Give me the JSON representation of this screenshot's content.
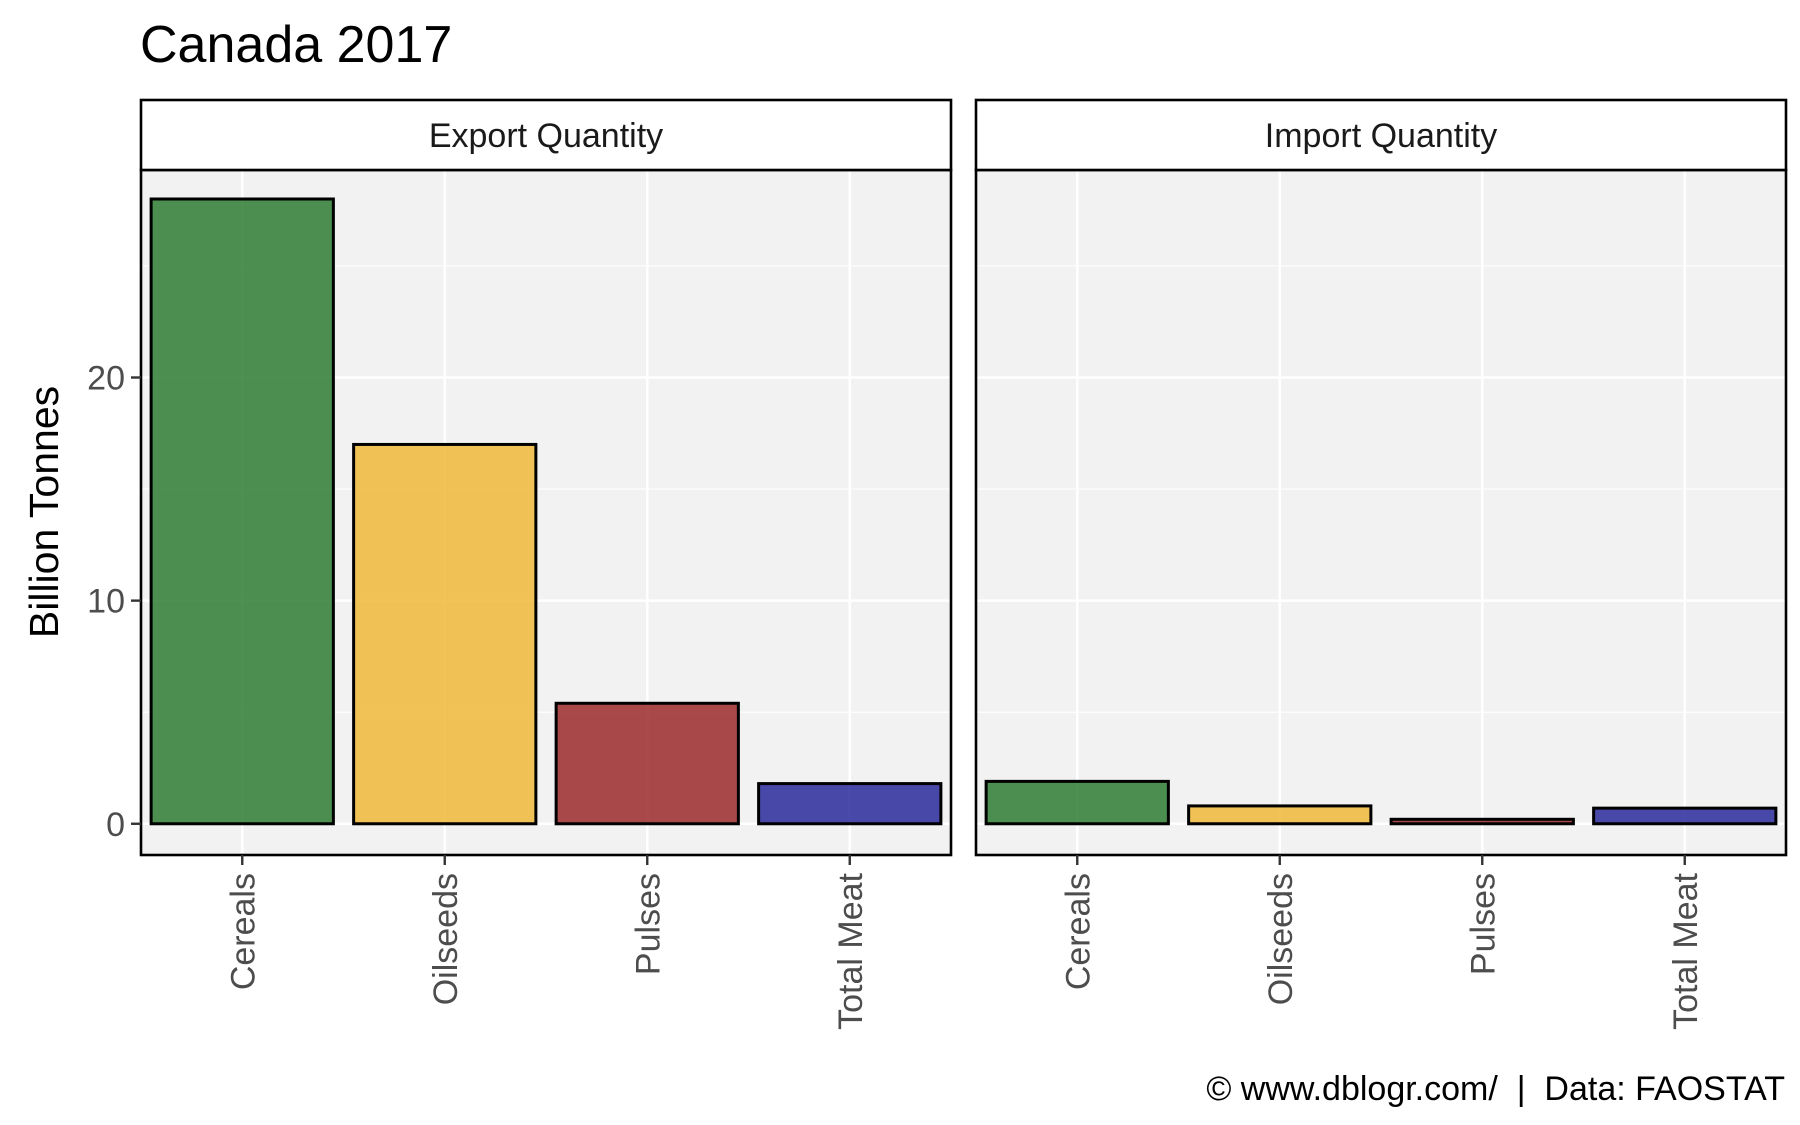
{
  "chart_data": {
    "type": "bar",
    "title": "Canada 2017",
    "ylabel": "Billion Tonnes",
    "xlabel": "",
    "ylim": [
      -1.4,
      29.3
    ],
    "yticks": [
      0,
      10,
      20
    ],
    "grid": true,
    "legend": "none",
    "caption": "© www.dblogr.com/  |  Data: FAOSTAT",
    "categories": [
      "Cereals",
      "Oilseeds",
      "Pulses",
      "Total Meat"
    ],
    "colors": [
      "#2e7d32",
      "#f0b93a",
      "#9c2a2a",
      "#2a2a9c"
    ],
    "panels": [
      {
        "name": "Export Quantity",
        "values": [
          28.0,
          17.0,
          5.4,
          1.8
        ]
      },
      {
        "name": "Import Quantity",
        "values": [
          1.9,
          0.8,
          0.2,
          0.7
        ]
      }
    ]
  }
}
